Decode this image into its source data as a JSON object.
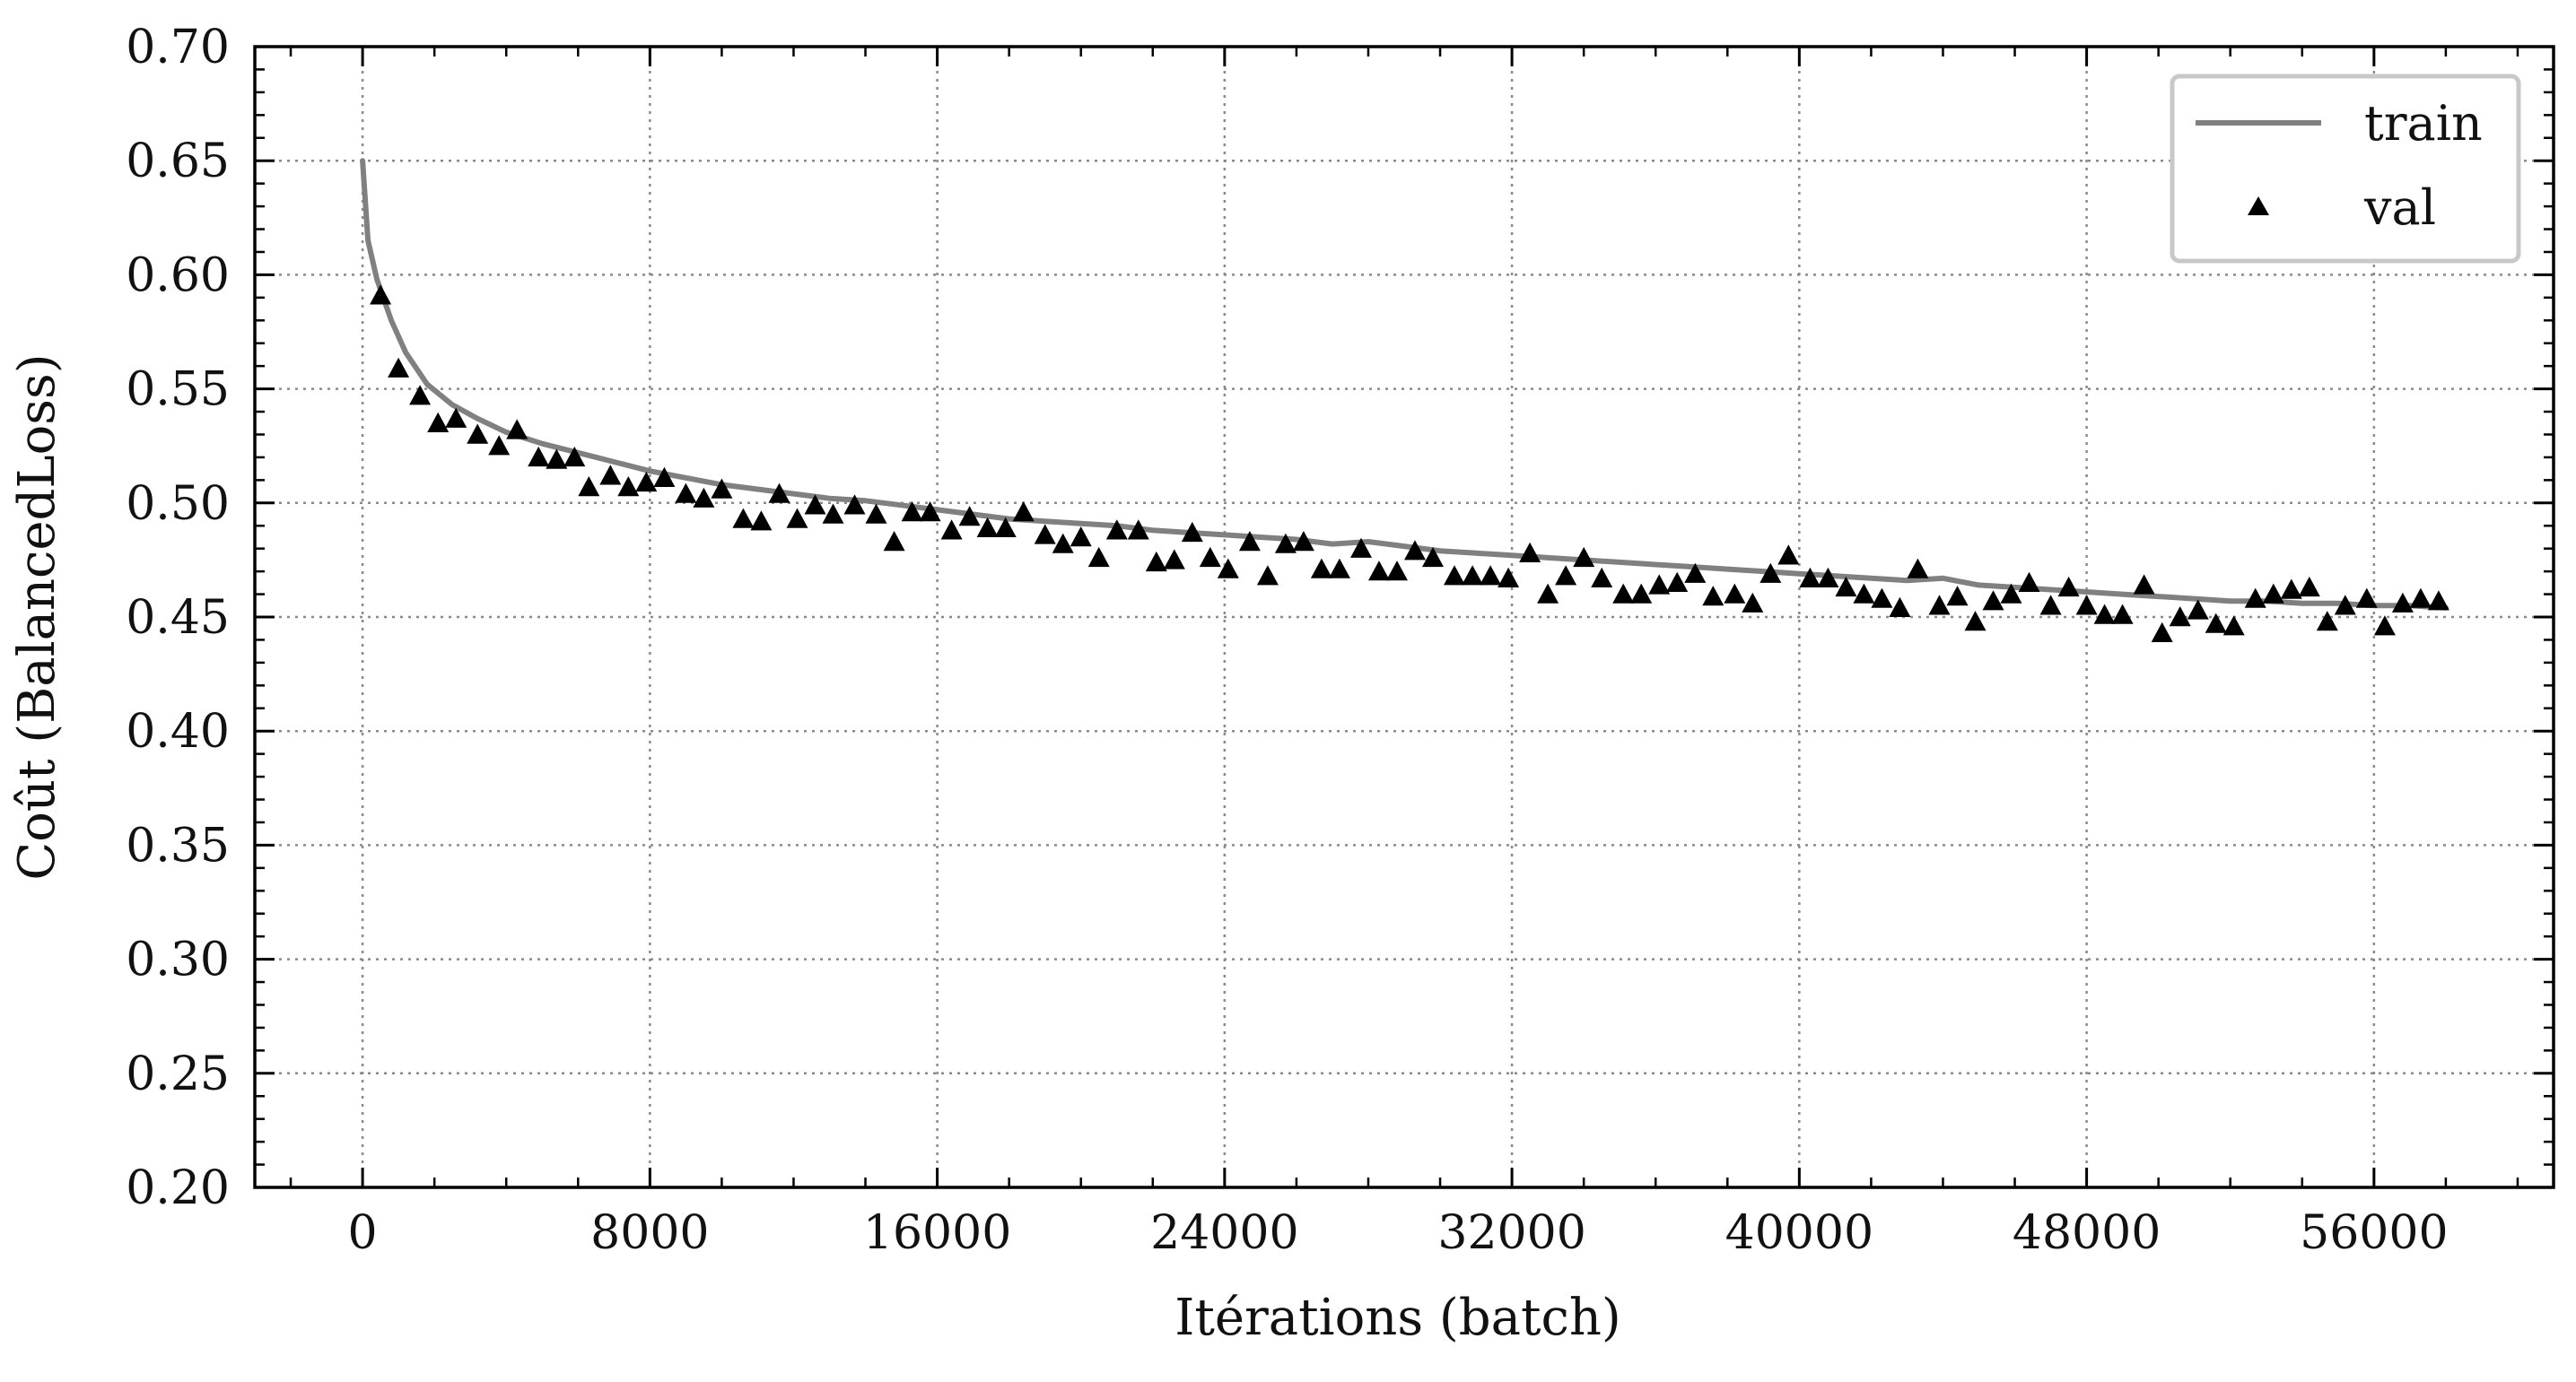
{
  "chart_data": {
    "type": "line",
    "xlabel": "Itérations (batch)",
    "ylabel": "Coût (BalancedLoss)",
    "xlim": [
      -3000,
      61000
    ],
    "ylim": [
      0.2,
      0.7
    ],
    "x_ticks": [
      "0",
      "8000",
      "16000",
      "24000",
      "32000",
      "40000",
      "48000",
      "56000"
    ],
    "y_ticks": [
      "0.20",
      "0.25",
      "0.30",
      "0.35",
      "0.40",
      "0.45",
      "0.50",
      "0.55",
      "0.60",
      "0.65",
      "0.70"
    ],
    "grid": true,
    "legend_position": "top-right",
    "colors": {
      "train": "#808080",
      "val": "#000000",
      "grid": "#8a8a8a",
      "axis": "#000000"
    },
    "series": [
      {
        "name": "train",
        "kind": "line",
        "points": [
          [
            0,
            0.65
          ],
          [
            150,
            0.615
          ],
          [
            400,
            0.598
          ],
          [
            800,
            0.58
          ],
          [
            1200,
            0.566
          ],
          [
            1800,
            0.552
          ],
          [
            2500,
            0.543
          ],
          [
            3200,
            0.537
          ],
          [
            4000,
            0.531
          ],
          [
            5000,
            0.526
          ],
          [
            6000,
            0.522
          ],
          [
            7000,
            0.518
          ],
          [
            8000,
            0.514
          ],
          [
            9000,
            0.511
          ],
          [
            10000,
            0.508
          ],
          [
            11000,
            0.506
          ],
          [
            12000,
            0.504
          ],
          [
            13000,
            0.502
          ],
          [
            14000,
            0.501
          ],
          [
            15000,
            0.499
          ],
          [
            16000,
            0.497
          ],
          [
            17000,
            0.495
          ],
          [
            18000,
            0.493
          ],
          [
            19000,
            0.492
          ],
          [
            20000,
            0.491
          ],
          [
            21000,
            0.49
          ],
          [
            22000,
            0.488
          ],
          [
            23000,
            0.487
          ],
          [
            24000,
            0.486
          ],
          [
            25000,
            0.485
          ],
          [
            26000,
            0.484
          ],
          [
            27000,
            0.482
          ],
          [
            28000,
            0.483
          ],
          [
            29000,
            0.481
          ],
          [
            30000,
            0.479
          ],
          [
            31000,
            0.478
          ],
          [
            32000,
            0.477
          ],
          [
            33000,
            0.476
          ],
          [
            34000,
            0.475
          ],
          [
            35000,
            0.474
          ],
          [
            36000,
            0.473
          ],
          [
            37000,
            0.472
          ],
          [
            38000,
            0.471
          ],
          [
            39000,
            0.47
          ],
          [
            40000,
            0.469
          ],
          [
            41000,
            0.468
          ],
          [
            42000,
            0.467
          ],
          [
            43000,
            0.466
          ],
          [
            44000,
            0.467
          ],
          [
            45000,
            0.464
          ],
          [
            46000,
            0.463
          ],
          [
            47000,
            0.462
          ],
          [
            48000,
            0.461
          ],
          [
            49000,
            0.46
          ],
          [
            50000,
            0.459
          ],
          [
            51000,
            0.458
          ],
          [
            52000,
            0.457
          ],
          [
            53000,
            0.457
          ],
          [
            54000,
            0.456
          ],
          [
            55000,
            0.456
          ],
          [
            56000,
            0.455
          ],
          [
            57000,
            0.455
          ],
          [
            58000,
            0.454
          ]
        ]
      },
      {
        "name": "val",
        "kind": "scatter",
        "marker": "triangle",
        "points": [
          [
            500,
            0.591
          ],
          [
            1000,
            0.559
          ],
          [
            1600,
            0.547
          ],
          [
            2100,
            0.535
          ],
          [
            2600,
            0.537
          ],
          [
            3200,
            0.53
          ],
          [
            3800,
            0.525
          ],
          [
            4300,
            0.532
          ],
          [
            4900,
            0.52
          ],
          [
            5400,
            0.519
          ],
          [
            5900,
            0.52
          ],
          [
            6300,
            0.507
          ],
          [
            6900,
            0.512
          ],
          [
            7400,
            0.507
          ],
          [
            7900,
            0.509
          ],
          [
            8400,
            0.511
          ],
          [
            9000,
            0.504
          ],
          [
            9500,
            0.502
          ],
          [
            10000,
            0.506
          ],
          [
            10600,
            0.493
          ],
          [
            11100,
            0.492
          ],
          [
            11600,
            0.504
          ],
          [
            12100,
            0.493
          ],
          [
            12600,
            0.499
          ],
          [
            13100,
            0.495
          ],
          [
            13700,
            0.499
          ],
          [
            14300,
            0.495
          ],
          [
            14800,
            0.483
          ],
          [
            15300,
            0.496
          ],
          [
            15800,
            0.496
          ],
          [
            16400,
            0.488
          ],
          [
            16900,
            0.494
          ],
          [
            17400,
            0.489
          ],
          [
            17900,
            0.489
          ],
          [
            18400,
            0.496
          ],
          [
            19000,
            0.486
          ],
          [
            19500,
            0.482
          ],
          [
            20000,
            0.485
          ],
          [
            20500,
            0.476
          ],
          [
            21000,
            0.488
          ],
          [
            21600,
            0.488
          ],
          [
            22100,
            0.474
          ],
          [
            22600,
            0.475
          ],
          [
            23100,
            0.487
          ],
          [
            23600,
            0.476
          ],
          [
            24100,
            0.471
          ],
          [
            24700,
            0.483
          ],
          [
            25200,
            0.468
          ],
          [
            25700,
            0.482
          ],
          [
            26200,
            0.483
          ],
          [
            26700,
            0.471
          ],
          [
            27200,
            0.471
          ],
          [
            27800,
            0.48
          ],
          [
            28300,
            0.47
          ],
          [
            28800,
            0.47
          ],
          [
            29300,
            0.479
          ],
          [
            29800,
            0.476
          ],
          [
            30400,
            0.468
          ],
          [
            30900,
            0.468
          ],
          [
            31400,
            0.468
          ],
          [
            31900,
            0.467
          ],
          [
            32500,
            0.478
          ],
          [
            33000,
            0.46
          ],
          [
            33500,
            0.468
          ],
          [
            34000,
            0.476
          ],
          [
            34500,
            0.467
          ],
          [
            35100,
            0.46
          ],
          [
            35600,
            0.46
          ],
          [
            36100,
            0.464
          ],
          [
            36600,
            0.465
          ],
          [
            37100,
            0.469
          ],
          [
            37600,
            0.459
          ],
          [
            38200,
            0.46
          ],
          [
            38700,
            0.456
          ],
          [
            39200,
            0.469
          ],
          [
            39700,
            0.477
          ],
          [
            40300,
            0.467
          ],
          [
            40800,
            0.467
          ],
          [
            41300,
            0.463
          ],
          [
            41800,
            0.46
          ],
          [
            42300,
            0.458
          ],
          [
            42800,
            0.454
          ],
          [
            43300,
            0.471
          ],
          [
            43900,
            0.455
          ],
          [
            44400,
            0.459
          ],
          [
            44900,
            0.448
          ],
          [
            45400,
            0.457
          ],
          [
            45900,
            0.46
          ],
          [
            46400,
            0.465
          ],
          [
            47000,
            0.455
          ],
          [
            47500,
            0.463
          ],
          [
            48000,
            0.455
          ],
          [
            48500,
            0.451
          ],
          [
            49000,
            0.451
          ],
          [
            49600,
            0.464
          ],
          [
            50100,
            0.443
          ],
          [
            50600,
            0.45
          ],
          [
            51100,
            0.453
          ],
          [
            51600,
            0.447
          ],
          [
            52100,
            0.446
          ],
          [
            52700,
            0.458
          ],
          [
            53200,
            0.46
          ],
          [
            53700,
            0.462
          ],
          [
            54200,
            0.463
          ],
          [
            54700,
            0.448
          ],
          [
            55200,
            0.455
          ],
          [
            55800,
            0.458
          ],
          [
            56300,
            0.446
          ],
          [
            56800,
            0.456
          ],
          [
            57300,
            0.458
          ],
          [
            57800,
            0.457
          ]
        ]
      }
    ]
  }
}
